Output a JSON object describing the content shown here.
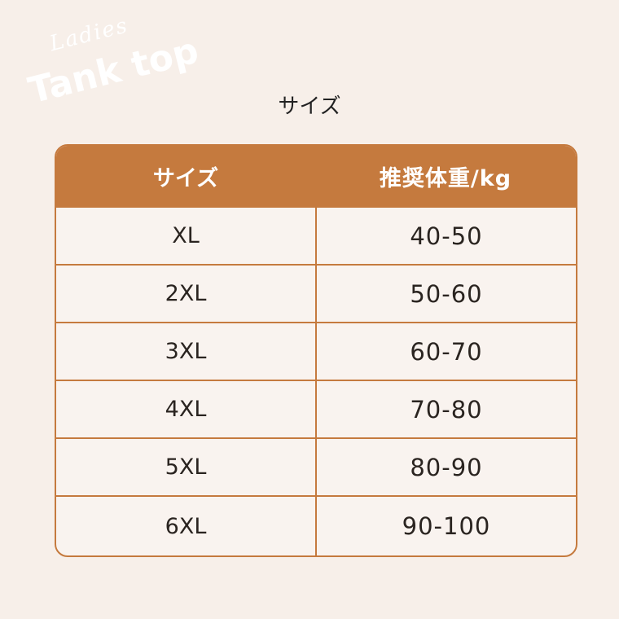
{
  "logo": {
    "script": "Ladies",
    "title": "Tank top"
  },
  "title": "サイズ",
  "table": {
    "header": [
      "サイズ",
      "推奨体重/kg"
    ],
    "rows": [
      [
        "XL",
        "40-50"
      ],
      [
        "2XL",
        "50-60"
      ],
      [
        "3XL",
        "60-70"
      ],
      [
        "4XL",
        "70-80"
      ],
      [
        "5XL",
        "80-90"
      ],
      [
        "6XL",
        "90-100"
      ]
    ]
  }
}
